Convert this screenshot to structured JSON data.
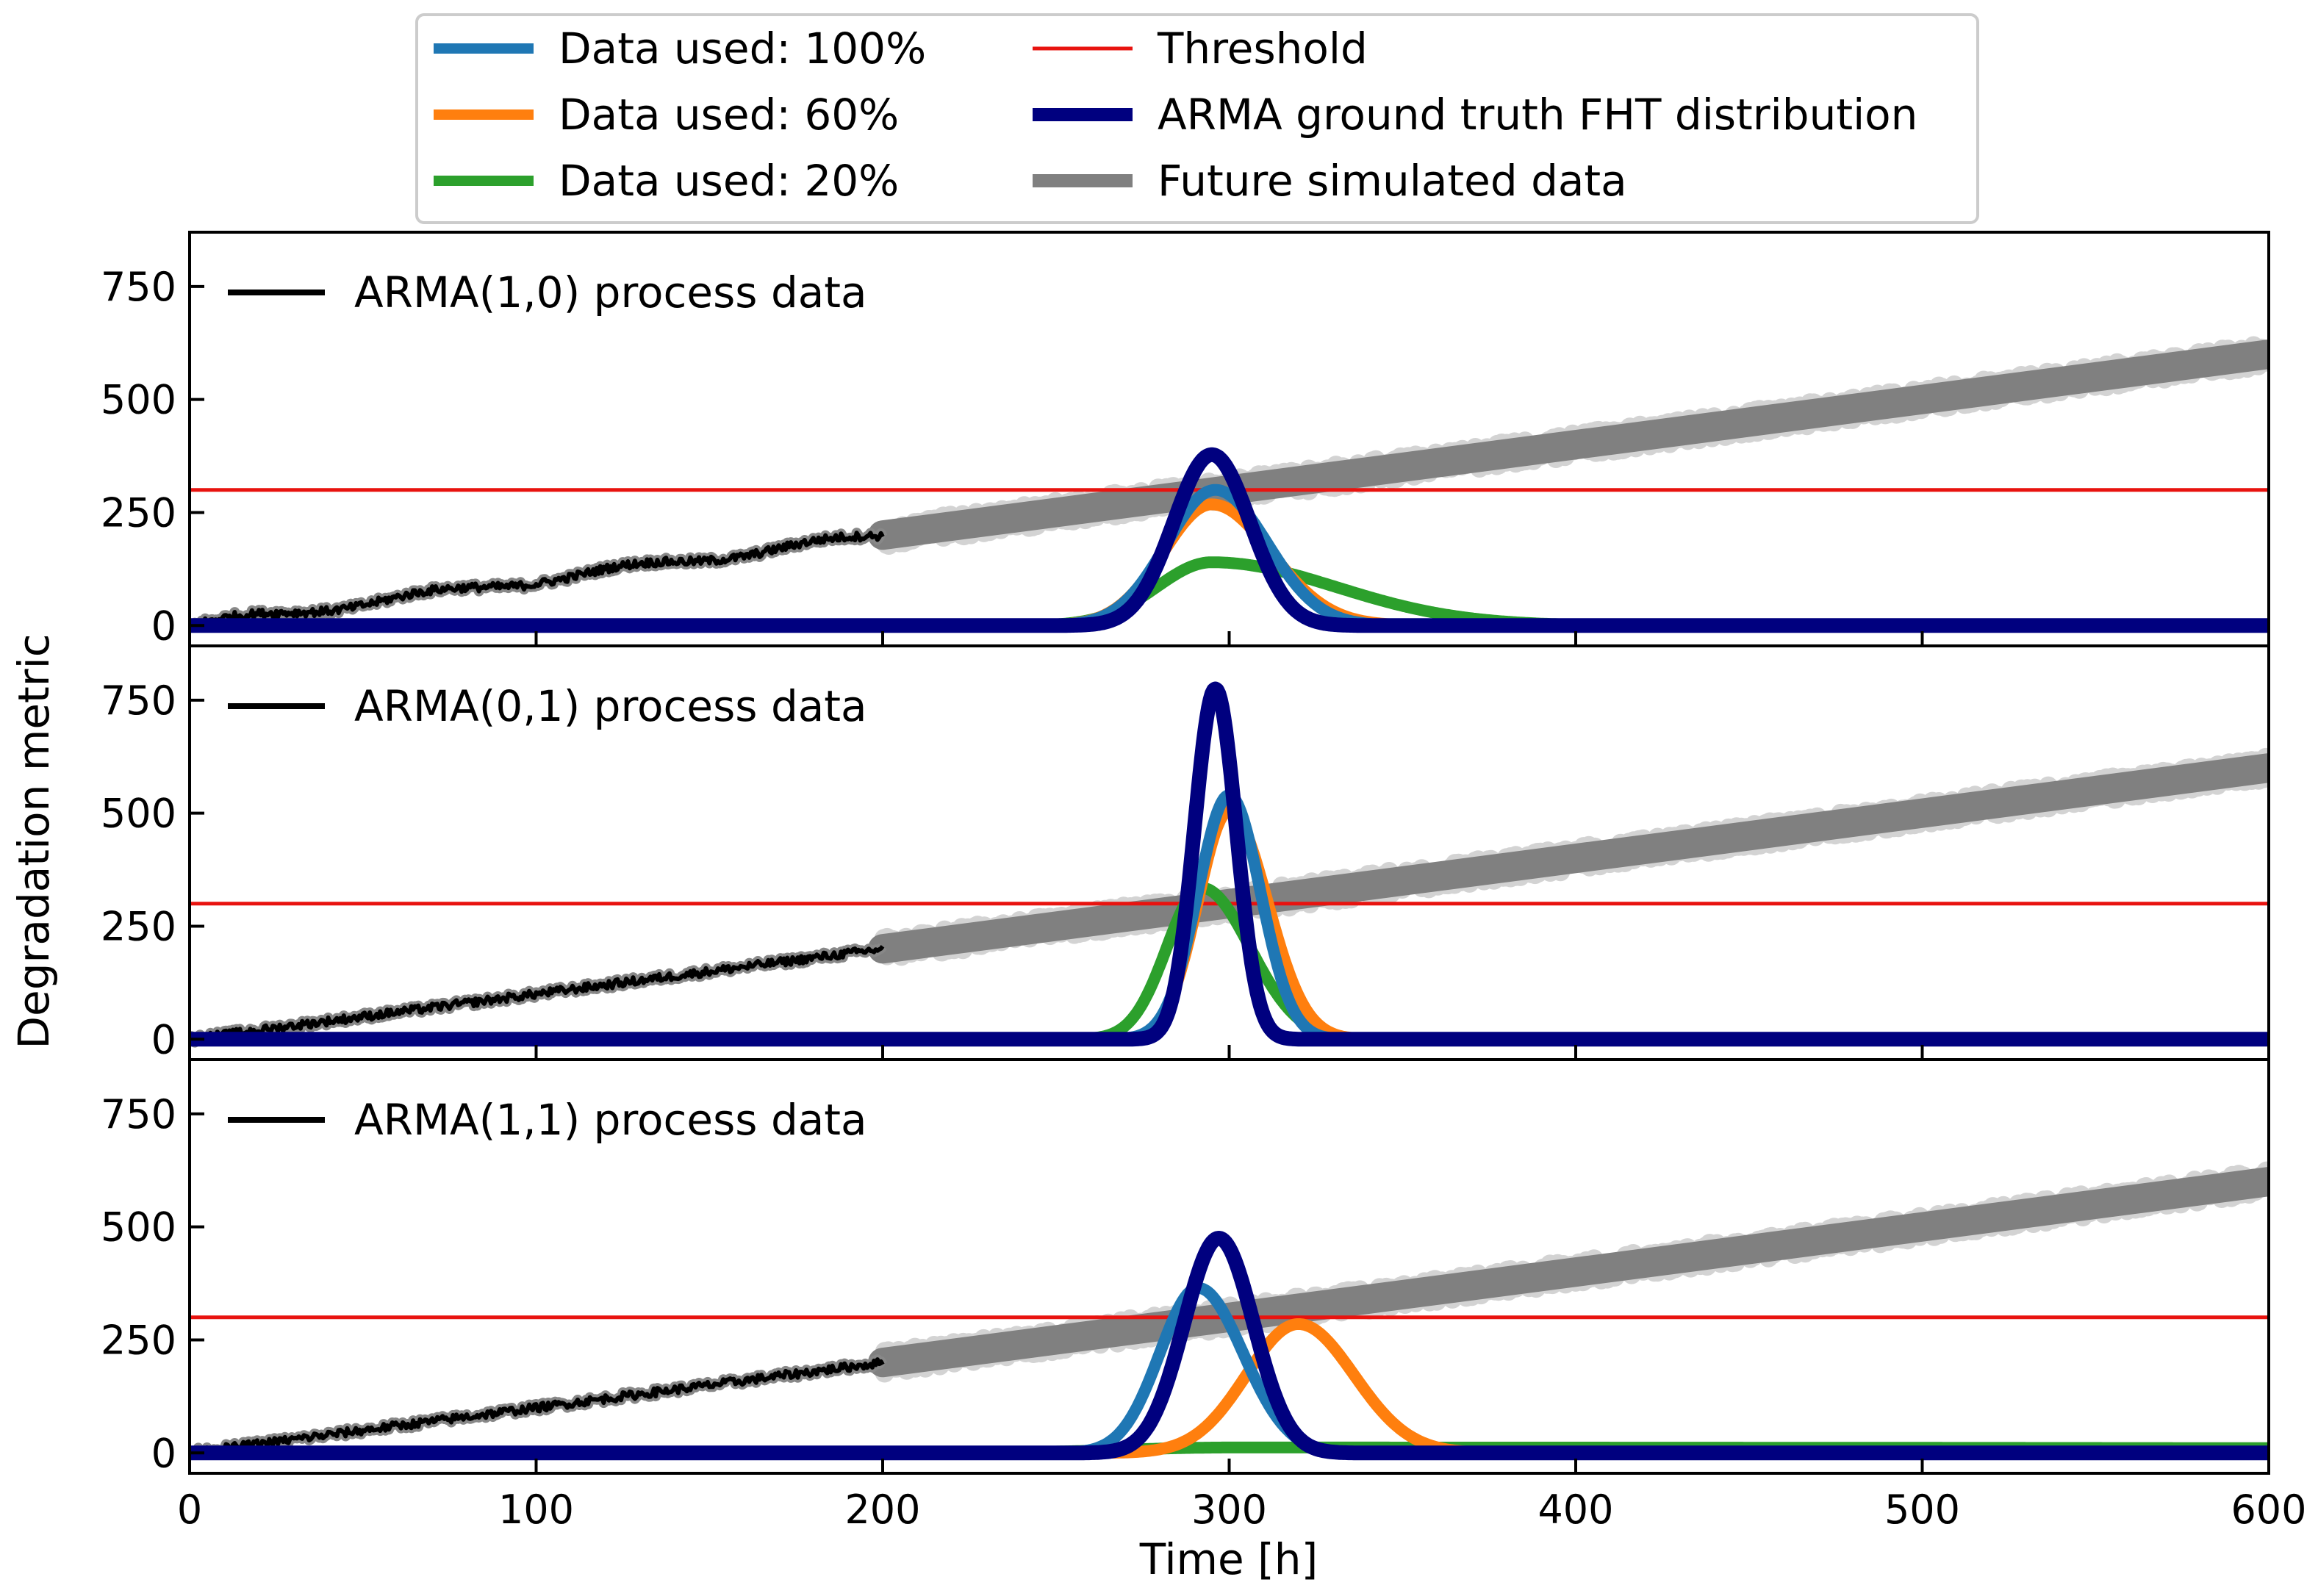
{
  "chart_data": {
    "type": "line",
    "xlabel": "Time [h]",
    "ylabel": "Degradation metric",
    "xlim": [
      0,
      600
    ],
    "ylim": [
      -45,
      870
    ],
    "xticks": [
      0,
      100,
      200,
      300,
      400,
      500,
      600
    ],
    "yticks": [
      0,
      250,
      500,
      750
    ],
    "legend": [
      {
        "label": "Data used: 100%",
        "color": "#1f77b4"
      },
      {
        "label": "Data used: 60%",
        "color": "#ff7f0e"
      },
      {
        "label": "Data used: 20%",
        "color": "#2ca02c"
      },
      {
        "label": "Threshold",
        "color": "#e8130f"
      },
      {
        "label": "ARMA ground truth FHT distribution",
        "color": "#00007f"
      },
      {
        "label": "Future simulated data",
        "color": "#808080"
      }
    ],
    "colors": {
      "data100": "#1f77b4",
      "data60": "#ff7f0e",
      "data20": "#2ca02c",
      "threshold": "#e8130f",
      "truth": "#00007f",
      "future": "#808080",
      "process": "#000000"
    },
    "panels": [
      {
        "process_label": "ARMA(1,0) process data",
        "threshold": 300,
        "process_slope": 1.0,
        "future_range": [
          200,
          600
        ],
        "future_values": [
          200,
          600
        ],
        "curves": {
          "data100": {
            "mean": 296,
            "peak": 300,
            "sigma_left": 14,
            "sigma_right": 15,
            "baseline": 0
          },
          "data60": {
            "mean": 295,
            "peak": 268,
            "sigma_left": 14,
            "sigma_right": 17,
            "baseline": 0
          },
          "data20": {
            "mean": 295,
            "peak": 140,
            "sigma_left": 16,
            "sigma_right": 36,
            "baseline": 0
          },
          "truth": {
            "mean": 295,
            "peak": 378,
            "sigma_left": 11,
            "sigma_right": 11,
            "baseline": 0
          }
        }
      },
      {
        "process_label": "ARMA(0,1) process data",
        "threshold": 300,
        "process_slope": 1.0,
        "future_range": [
          200,
          600
        ],
        "future_values": [
          200,
          600
        ],
        "curves": {
          "data100": {
            "mean": 300,
            "peak": 540,
            "sigma_left": 9,
            "sigma_right": 9,
            "baseline": 0
          },
          "data60": {
            "mean": 300,
            "peak": 505,
            "sigma_left": 9,
            "sigma_right": 11,
            "baseline": 0
          },
          "data20": {
            "mean": 292,
            "peak": 335,
            "sigma_left": 10,
            "sigma_right": 14,
            "baseline": 0
          },
          "truth": {
            "mean": 296,
            "peak": 775,
            "sigma_left": 6,
            "sigma_right": 6,
            "baseline": 0
          }
        }
      },
      {
        "process_label": "ARMA(1,1) process data",
        "threshold": 300,
        "process_slope": 1.0,
        "future_range": [
          200,
          600
        ],
        "future_values": [
          200,
          600
        ],
        "curves": {
          "data100": {
            "mean": 291,
            "peak": 365,
            "sigma_left": 11,
            "sigma_right": 13,
            "baseline": 0
          },
          "data60": {
            "mean": 320,
            "peak": 285,
            "sigma_left": 15,
            "sigma_right": 16,
            "baseline": 0
          },
          "data20": {
            "mean": 300,
            "peak": 12,
            "sigma_left": 30,
            "sigma_right": 600,
            "baseline": 0
          },
          "truth": {
            "mean": 297,
            "peak": 475,
            "sigma_left": 10,
            "sigma_right": 10,
            "baseline": 0
          }
        }
      }
    ]
  }
}
